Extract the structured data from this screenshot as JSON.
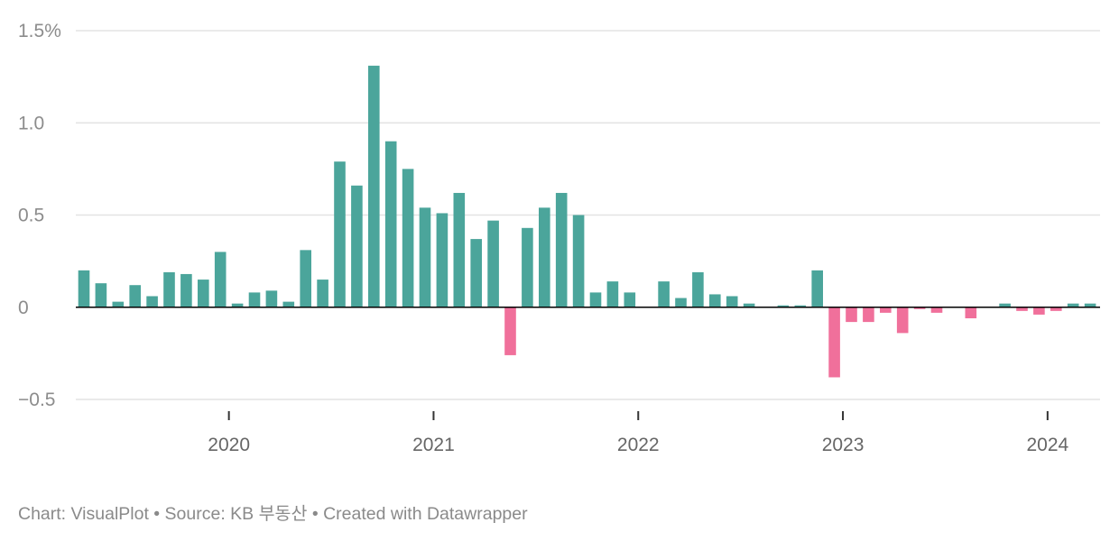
{
  "chart_data": {
    "type": "bar",
    "title": "",
    "xlabel": "",
    "ylabel": "",
    "ylim": [
      -0.5,
      1.5
    ],
    "y_ticks": [
      {
        "value": 1.5,
        "label": "1.5%"
      },
      {
        "value": 1.0,
        "label": "1.0"
      },
      {
        "value": 0.5,
        "label": "0.5"
      },
      {
        "value": 0,
        "label": "0"
      },
      {
        "value": -0.5,
        "label": "−0.5"
      }
    ],
    "x_ticks": [
      {
        "date": "2020-01",
        "label": "2020"
      },
      {
        "date": "2021-01",
        "label": "2021"
      },
      {
        "date": "2022-01",
        "label": "2022"
      },
      {
        "date": "2023-01",
        "label": "2023"
      },
      {
        "date": "2024-01",
        "label": "2024"
      }
    ],
    "categories": [
      "2019-04",
      "2019-05",
      "2019-06",
      "2019-07",
      "2019-08",
      "2019-09",
      "2019-10",
      "2019-11",
      "2019-12",
      "2020-01",
      "2020-02",
      "2020-03",
      "2020-04",
      "2020-05",
      "2020-06",
      "2020-07",
      "2020-08",
      "2020-09",
      "2020-10",
      "2020-11",
      "2020-12",
      "2021-01",
      "2021-02",
      "2021-03",
      "2021-04",
      "2021-05",
      "2021-06",
      "2021-07",
      "2021-08",
      "2021-09",
      "2021-10",
      "2021-11",
      "2021-12",
      "2022-01",
      "2022-02",
      "2022-03",
      "2022-04",
      "2022-05",
      "2022-06",
      "2022-07",
      "2022-08",
      "2022-09",
      "2022-10",
      "2022-11",
      "2022-12",
      "2023-01",
      "2023-02",
      "2023-03",
      "2023-04",
      "2023-05",
      "2023-06",
      "2023-07",
      "2023-08",
      "2023-09",
      "2023-10",
      "2023-11",
      "2023-12",
      "2024-01",
      "2024-02",
      "2024-03"
    ],
    "values": [
      0.2,
      0.13,
      0.03,
      0.12,
      0.06,
      0.19,
      0.18,
      0.15,
      0.3,
      0.02,
      0.08,
      0.09,
      0.03,
      0.31,
      0.15,
      0.79,
      0.66,
      1.31,
      0.9,
      0.75,
      0.54,
      0.51,
      0.62,
      0.37,
      0.47,
      -0.26,
      0.43,
      0.54,
      0.62,
      0.5,
      0.08,
      0.14,
      0.08,
      0.0,
      0.14,
      0.05,
      0.19,
      0.07,
      0.06,
      0.02,
      0.0,
      0.01,
      0.01,
      0.2,
      -0.38,
      -0.08,
      -0.08,
      -0.03,
      -0.14,
      -0.01,
      -0.03,
      0.0,
      -0.06,
      0.0,
      0.02,
      -0.02,
      -0.04,
      -0.02,
      0.02,
      0.02
    ],
    "colors": {
      "positive": "#4ba59b",
      "negative": "#f0709b",
      "grid": "#e3e3e3",
      "zero": "#000000",
      "tick": "#333333"
    },
    "grid": true,
    "legend": "none"
  },
  "footer": {
    "text": "Chart: VisualPlot • Source: KB 부동산 • Created with Datawrapper"
  }
}
